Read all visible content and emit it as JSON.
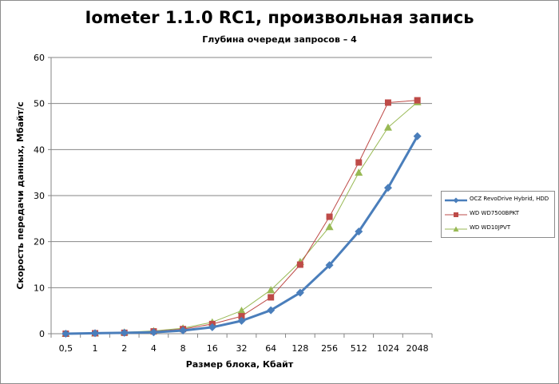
{
  "chart_data": {
    "type": "line",
    "title": "Iometer 1.1.0 RC1, произвольная запись",
    "subtitle": "Глубина очереди запросов – 4",
    "xlabel": "Размер блока, Кбайт",
    "ylabel": "Скорость передачи данных, Мбайт/с",
    "categories": [
      "0,5",
      "1",
      "2",
      "4",
      "8",
      "16",
      "32",
      "64",
      "128",
      "256",
      "512",
      "1024",
      "2048"
    ],
    "ylim": [
      0,
      60
    ],
    "yticks": [
      0,
      10,
      20,
      30,
      40,
      50,
      60
    ],
    "grid": true,
    "legend_position": "right",
    "series": [
      {
        "name": "OCZ RevoDrive Hybrid, HDD",
        "color": "#4a7ebb",
        "marker": "diamond",
        "values": [
          0.0,
          0.1,
          0.2,
          0.3,
          0.7,
          1.4,
          2.8,
          5.1,
          8.9,
          14.9,
          22.2,
          31.7,
          42.9
        ]
      },
      {
        "name": "WD WD7500BPKT",
        "color": "#be4b48",
        "marker": "square",
        "values": [
          0.0,
          0.1,
          0.2,
          0.5,
          1.0,
          2.1,
          3.8,
          7.9,
          15.0,
          25.4,
          37.2,
          50.2,
          50.7
        ]
      },
      {
        "name": "WD WD10JPVT",
        "color": "#98b954",
        "marker": "triangle",
        "values": [
          0.0,
          0.1,
          0.3,
          0.6,
          1.2,
          2.5,
          5.0,
          9.5,
          15.6,
          23.2,
          35.0,
          44.8,
          50.3
        ]
      }
    ]
  }
}
